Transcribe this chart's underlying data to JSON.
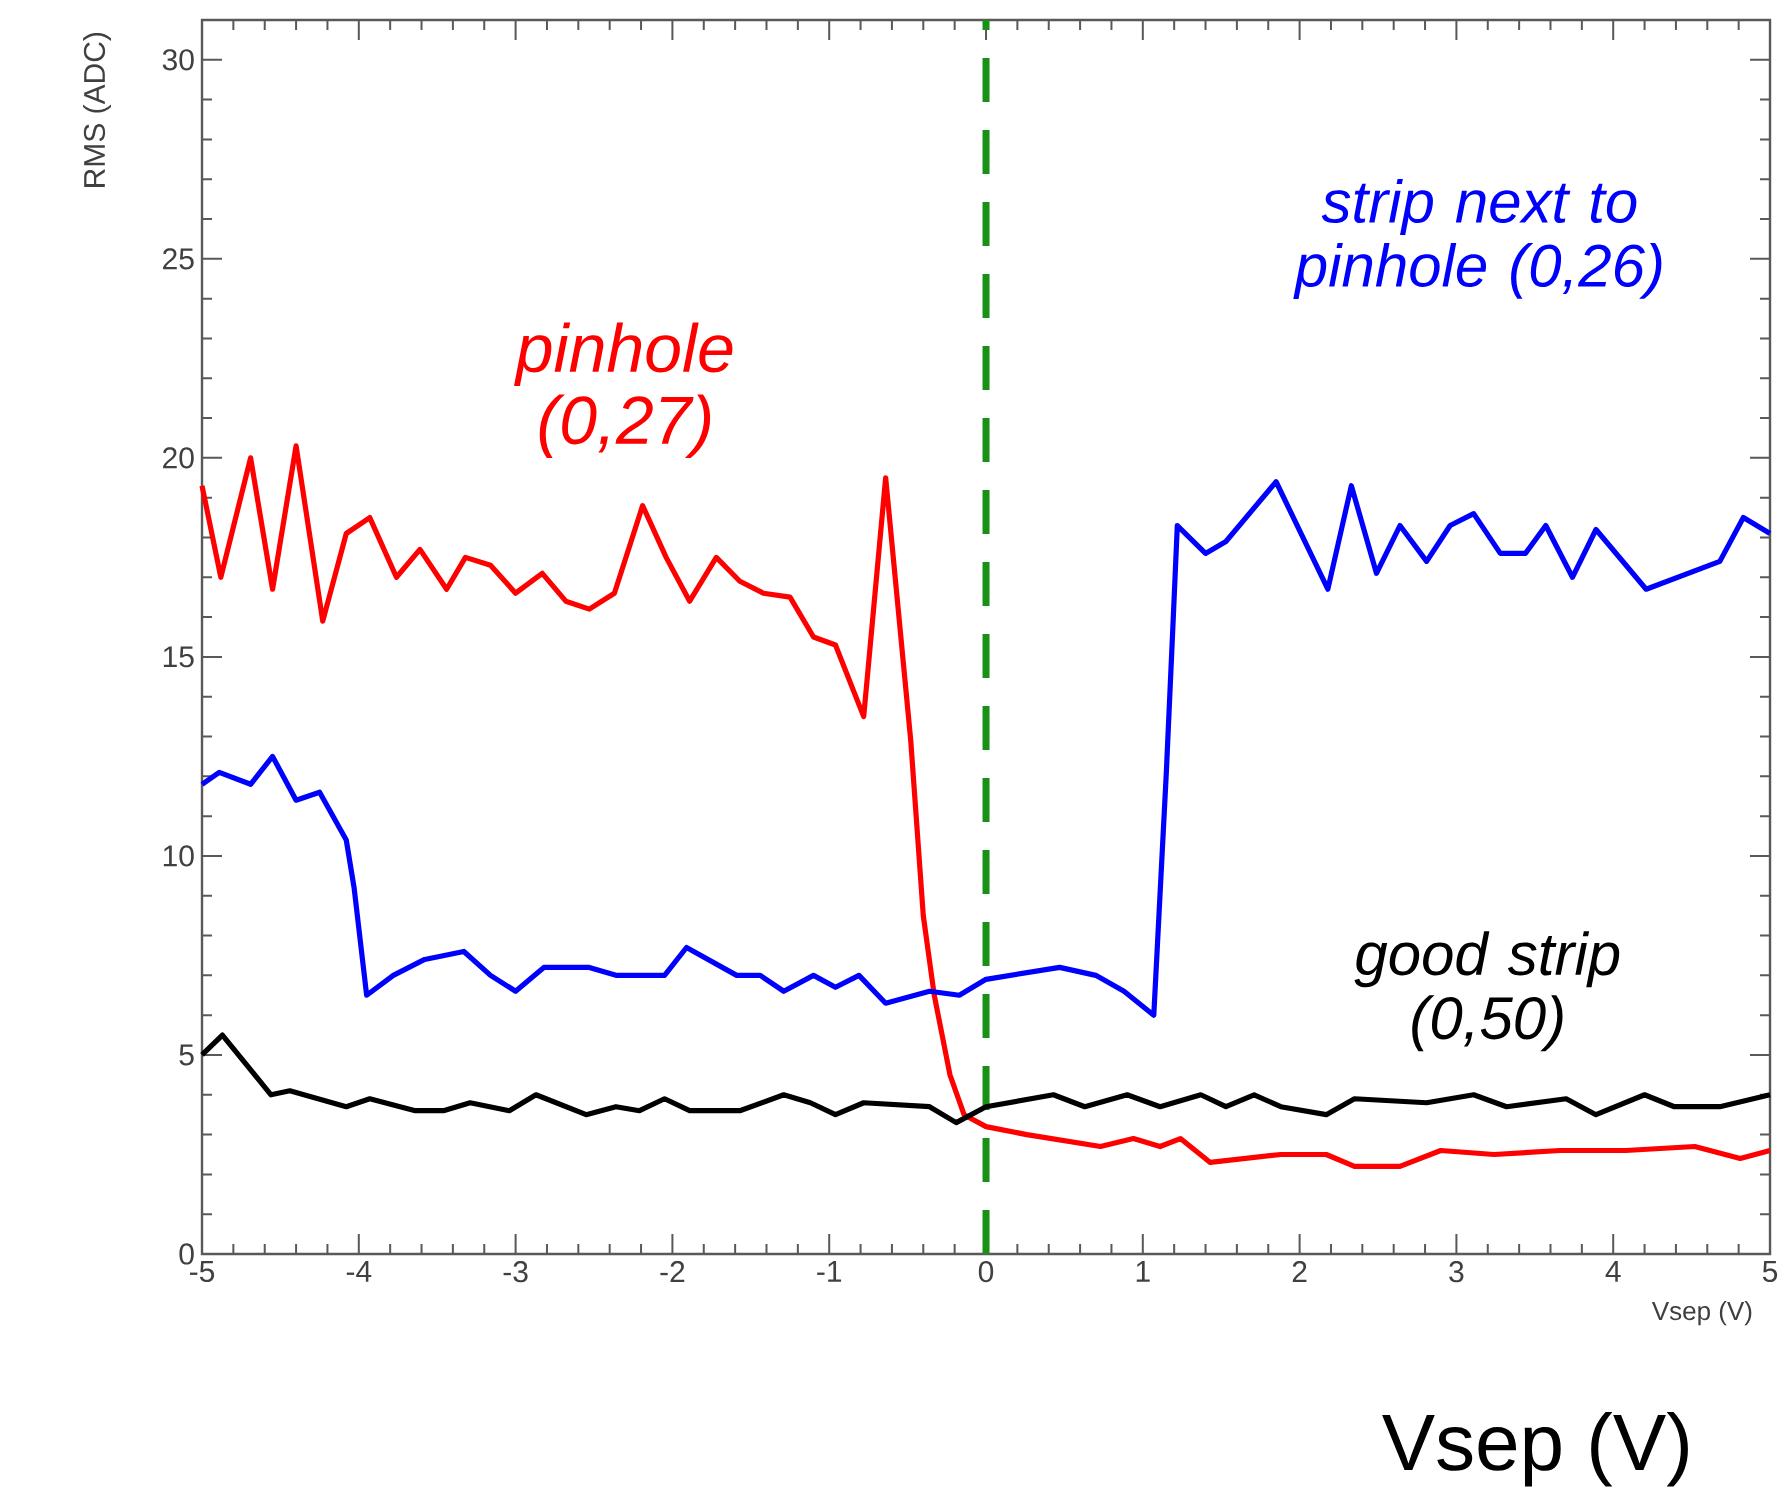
{
  "chart_data": {
    "type": "line",
    "xlabel": "Vsep (V)",
    "ylabel": "RMS (ADC)",
    "xlim": [
      -5,
      5
    ],
    "ylim": [
      0,
      31
    ],
    "xticks": [
      -5,
      -4,
      -3,
      -2,
      -1,
      0,
      1,
      2,
      3,
      4,
      5
    ],
    "yticks": [
      0,
      5,
      10,
      15,
      20,
      25,
      30
    ],
    "grid": false,
    "marker": "none",
    "annotations": [
      "Vsep (V)"
    ],
    "line_style": "solid",
    "ref_lines": [
      {
        "axis": "x",
        "value": 0,
        "color": "#179117",
        "line_style": "dashed"
      }
    ],
    "series": [
      {
        "name": "pinhole (0,27)",
        "color": "#ff0000",
        "x": [
          -5.0,
          -4.88,
          -4.69,
          -4.55,
          -4.4,
          -4.23,
          -4.08,
          -3.93,
          -3.76,
          -3.61,
          -3.44,
          -3.32,
          -3.16,
          -3.0,
          -2.83,
          -2.68,
          -2.53,
          -2.37,
          -2.19,
          -2.04,
          -1.89,
          -1.72,
          -1.57,
          -1.42,
          -1.25,
          -1.1,
          -0.96,
          -0.78,
          -0.64,
          -0.48,
          -0.4,
          -0.33,
          -0.23,
          -0.14,
          0.0,
          0.26,
          0.73,
          0.94,
          1.11,
          1.24,
          1.43,
          1.88,
          2.17,
          2.35,
          2.64,
          2.9,
          3.24,
          3.66,
          4.08,
          4.52,
          4.81,
          5.0
        ],
        "values": [
          19.3,
          17.0,
          20.0,
          16.7,
          20.3,
          15.9,
          18.1,
          18.5,
          17.0,
          17.7,
          16.7,
          17.5,
          17.3,
          16.6,
          17.1,
          16.4,
          16.2,
          16.6,
          18.8,
          17.5,
          16.4,
          17.5,
          16.9,
          16.6,
          16.5,
          15.5,
          15.3,
          13.5,
          19.5,
          12.9,
          8.5,
          6.5,
          4.5,
          3.5,
          3.2,
          3.0,
          2.7,
          2.9,
          2.7,
          2.9,
          2.3,
          2.5,
          2.5,
          2.2,
          2.2,
          2.6,
          2.5,
          2.6,
          2.6,
          2.7,
          2.4,
          2.6
        ]
      },
      {
        "name": "strip next to pinhole (0,26)",
        "color": "#0000ff",
        "x": [
          -5.0,
          -4.89,
          -4.69,
          -4.55,
          -4.4,
          -4.25,
          -4.08,
          -4.03,
          -3.95,
          -3.78,
          -3.58,
          -3.33,
          -3.16,
          -3.0,
          -2.82,
          -2.53,
          -2.36,
          -2.05,
          -1.91,
          -1.59,
          -1.44,
          -1.29,
          -1.1,
          -0.96,
          -0.81,
          -0.64,
          -0.36,
          -0.17,
          0.0,
          0.47,
          0.7,
          0.88,
          1.07,
          1.15,
          1.19,
          1.22,
          1.4,
          1.53,
          1.85,
          2.18,
          2.33,
          2.49,
          2.64,
          2.81,
          2.96,
          3.11,
          3.28,
          3.44,
          3.57,
          3.74,
          3.89,
          4.21,
          4.68,
          4.83,
          5.0
        ],
        "values": [
          11.8,
          12.1,
          11.8,
          12.5,
          11.4,
          11.6,
          10.4,
          9.2,
          6.5,
          7.0,
          7.4,
          7.6,
          7.0,
          6.6,
          7.2,
          7.2,
          7.0,
          7.0,
          7.7,
          7.0,
          7.0,
          6.6,
          7.0,
          6.7,
          7.0,
          6.3,
          6.6,
          6.5,
          6.9,
          7.2,
          7.0,
          6.6,
          6.0,
          12.1,
          15.6,
          18.3,
          17.6,
          17.9,
          19.4,
          16.7,
          19.3,
          17.1,
          18.3,
          17.4,
          18.3,
          18.6,
          17.6,
          17.6,
          18.3,
          17.0,
          18.2,
          16.7,
          17.4,
          18.5,
          18.1
        ]
      },
      {
        "name": "good strip (0,50)",
        "color": "#000000",
        "x": [
          -5.0,
          -4.87,
          -4.56,
          -4.44,
          -4.08,
          -3.93,
          -3.64,
          -3.46,
          -3.29,
          -3.04,
          -2.87,
          -2.55,
          -2.36,
          -2.21,
          -2.05,
          -1.89,
          -1.57,
          -1.29,
          -1.12,
          -0.96,
          -0.78,
          -0.36,
          -0.19,
          0.0,
          0.43,
          0.63,
          0.9,
          1.11,
          1.37,
          1.53,
          1.71,
          1.88,
          2.17,
          2.35,
          2.81,
          3.11,
          3.32,
          3.7,
          3.89,
          4.2,
          4.39,
          4.68,
          5.0
        ],
        "values": [
          5.0,
          5.5,
          4.0,
          4.1,
          3.7,
          3.9,
          3.6,
          3.6,
          3.8,
          3.6,
          4.0,
          3.5,
          3.7,
          3.6,
          3.9,
          3.6,
          3.6,
          4.0,
          3.8,
          3.5,
          3.8,
          3.7,
          3.3,
          3.7,
          4.0,
          3.7,
          4.0,
          3.7,
          4.0,
          3.7,
          4.0,
          3.7,
          3.5,
          3.9,
          3.8,
          4.0,
          3.7,
          3.9,
          3.5,
          4.0,
          3.7,
          3.7,
          4.0
        ]
      }
    ]
  }
}
